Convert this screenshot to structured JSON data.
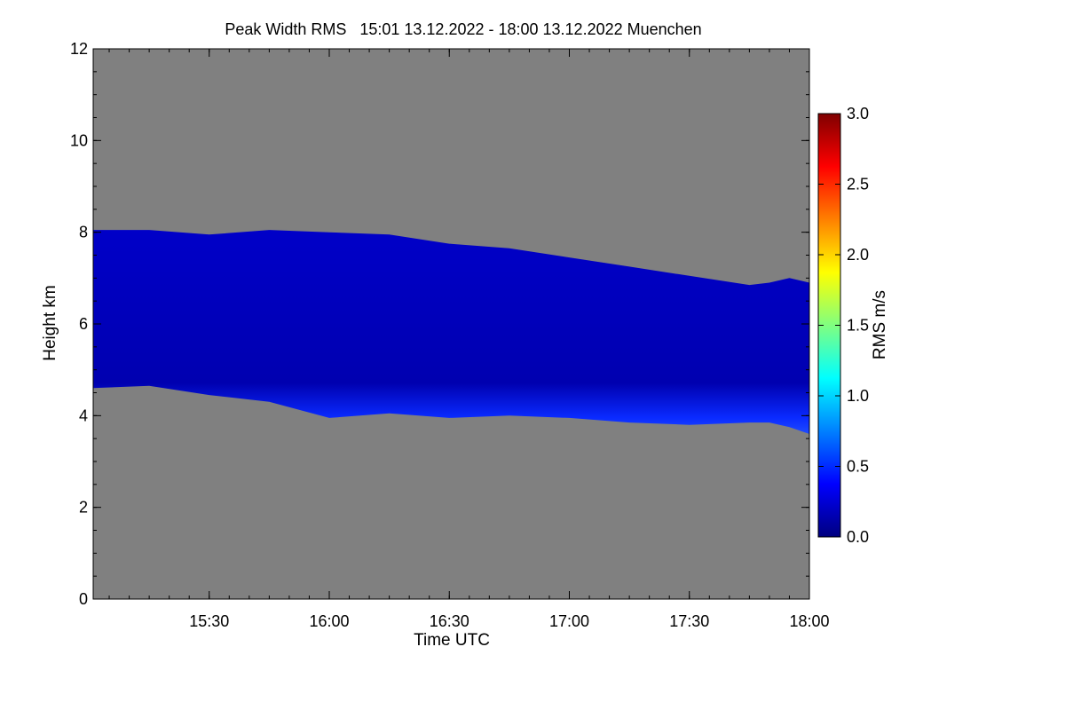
{
  "chart_data": {
    "type": "heatmap",
    "title": "Peak Width RMS   15:01 13.12.2022 - 18:00 13.12.2022 Muenchen",
    "xlabel": "Time UTC",
    "ylabel": "Height km",
    "xlim": [
      "15:01",
      "18:00"
    ],
    "ylim": [
      0,
      12
    ],
    "x_ticks": [
      "15:30",
      "16:00",
      "16:30",
      "17:00",
      "17:30",
      "18:00"
    ],
    "y_ticks": [
      "0",
      "2",
      "4",
      "6",
      "8",
      "10",
      "12"
    ],
    "background_color": "#808080",
    "grid": false,
    "colorbar": {
      "label": "RMS m/s",
      "range": [
        0.0,
        3.0
      ],
      "ticks": [
        "0.0",
        "0.5",
        "1.0",
        "1.5",
        "2.0",
        "2.5",
        "3.0"
      ],
      "colormap": [
        "#00007f",
        "#0000ff",
        "#0080ff",
        "#00ffff",
        "#80ff80",
        "#ffff00",
        "#ff8000",
        "#ff0000",
        "#7f0000"
      ]
    },
    "layer": {
      "description_values_rms": 0.3,
      "top_km": [
        8.05,
        8.05,
        7.95,
        8.05,
        8.0,
        7.95,
        7.75,
        7.65,
        7.45,
        7.25,
        7.05,
        6.85,
        6.9,
        7.0,
        6.9
      ],
      "base_km": [
        4.6,
        4.65,
        4.45,
        4.3,
        3.95,
        4.05,
        3.95,
        4.0,
        3.95,
        3.85,
        3.8,
        3.85,
        3.85,
        3.75,
        3.6
      ],
      "times": [
        "15:01",
        "15:15",
        "15:30",
        "15:45",
        "16:00",
        "16:15",
        "16:30",
        "16:45",
        "17:00",
        "17:15",
        "17:30",
        "17:45",
        "17:50",
        "17:55",
        "18:00"
      ]
    }
  }
}
